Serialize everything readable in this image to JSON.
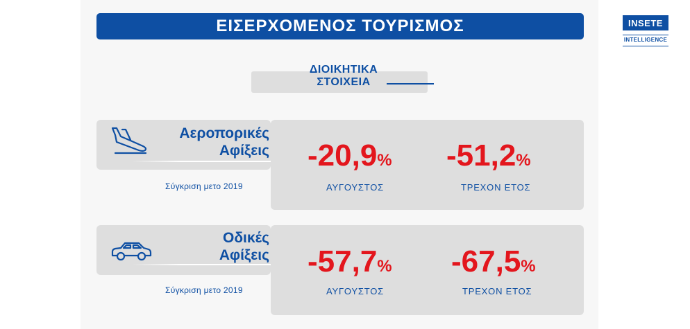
{
  "header": {
    "title": "ΕΙΣΕΡΧΟΜΕΝΟΣ ΤΟΥΡΙΣΜΟΣ"
  },
  "logo": {
    "brand": "INSETE",
    "subtitle": "INTELLIGENCE"
  },
  "subheading": {
    "line1": "ΔΙΟΙΚΗΤΙΚΑ",
    "line2": "ΣΤΟΙΧΕΙΑ"
  },
  "sections": [
    {
      "icon": "airplane-landing-icon",
      "label_line1": "Αεροπορικές",
      "label_line2": "Αφίξεις",
      "comparison": "Σύγκριση μετο 2019",
      "stats": [
        {
          "value": "-20,9",
          "unit": "%",
          "period": "ΑΥΓΟΥΣΤΟΣ"
        },
        {
          "value": "-51,2",
          "unit": "%",
          "period": "ΤΡΕΧΟΝ ΕΤΟΣ"
        }
      ]
    },
    {
      "icon": "car-icon",
      "label_line1": "Οδικές",
      "label_line2": "Αφίξεις",
      "comparison": "Σύγκριση μετο 2019",
      "stats": [
        {
          "value": "-57,7",
          "unit": "%",
          "period": "ΑΥΓΟΥΣΤΟΣ"
        },
        {
          "value": "-67,5",
          "unit": "%",
          "period": "ΤΡΕΧΟΝ ΕΤΟΣ"
        }
      ]
    }
  ],
  "colors": {
    "brand_blue": "#0e4fa3",
    "accent_red": "#e3161d",
    "card_gray": "#dedede"
  }
}
